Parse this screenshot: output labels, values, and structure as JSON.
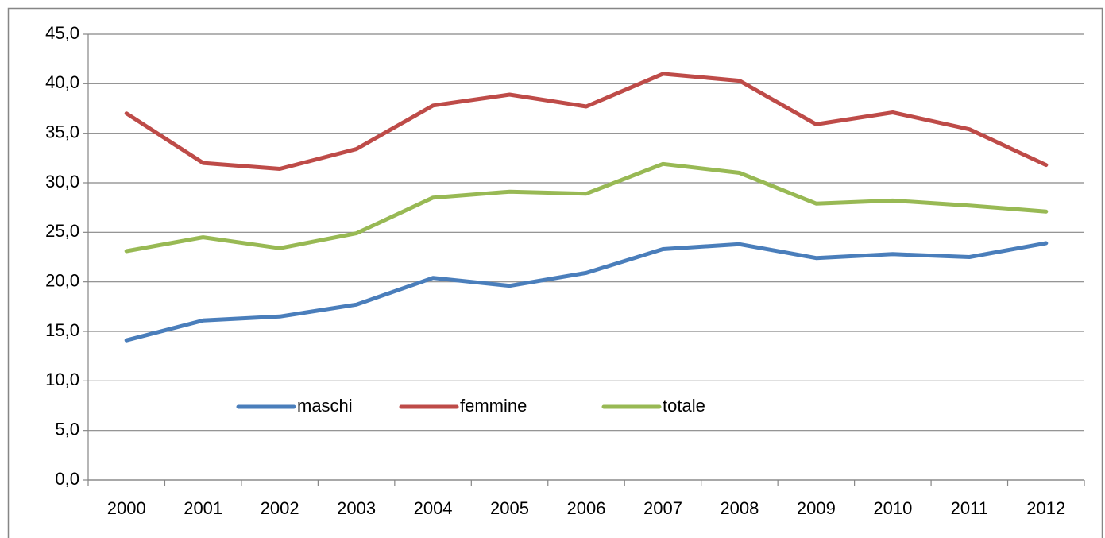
{
  "chart_data": {
    "type": "line",
    "categories": [
      "2000",
      "2001",
      "2002",
      "2003",
      "2004",
      "2005",
      "2006",
      "2007",
      "2008",
      "2009",
      "2010",
      "2011",
      "2012"
    ],
    "series": [
      {
        "name": "maschi",
        "color": "#4a7ebb",
        "values": [
          14.1,
          16.1,
          16.5,
          17.7,
          20.4,
          19.6,
          20.9,
          23.3,
          23.8,
          22.4,
          22.8,
          22.5,
          23.9
        ]
      },
      {
        "name": "femmine",
        "color": "#be4b48",
        "values": [
          37.0,
          32.0,
          31.4,
          33.4,
          37.8,
          38.9,
          37.7,
          41.0,
          40.3,
          35.9,
          37.1,
          35.4,
          31.8
        ]
      },
      {
        "name": "totale",
        "color": "#98b954",
        "values": [
          23.1,
          24.5,
          23.4,
          24.9,
          28.5,
          29.1,
          28.9,
          31.9,
          31.0,
          27.9,
          28.2,
          27.7,
          27.1
        ]
      }
    ],
    "ylim": [
      0,
      45
    ],
    "yticks": [
      {
        "value": 0,
        "label": "0,0"
      },
      {
        "value": 5,
        "label": "5,0"
      },
      {
        "value": 10,
        "label": "10,0"
      },
      {
        "value": 15,
        "label": "15,0"
      },
      {
        "value": 20,
        "label": "20,0"
      },
      {
        "value": 25,
        "label": "25,0"
      },
      {
        "value": 30,
        "label": "30,0"
      },
      {
        "value": 35,
        "label": "35,0"
      },
      {
        "value": 40,
        "label": "40,0"
      },
      {
        "value": 45,
        "label": "45,0"
      }
    ],
    "grid": true,
    "legend": "inside-bottom"
  }
}
